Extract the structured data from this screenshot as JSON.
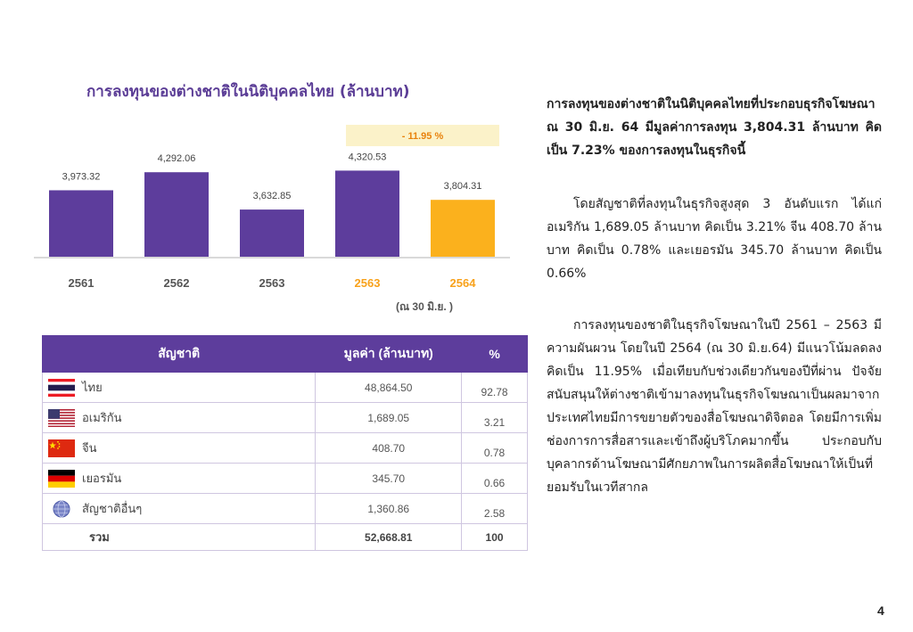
{
  "chart": {
    "title": "การลงทุนของต่างชาติในนิติบุคคลไทย (ล้านบาท)",
    "change_badge": "- 11.95 %",
    "note": "(ณ 30 มิ.ย. )",
    "colors": {
      "bar": "#5d3d9c",
      "highlight_bar": "#fbb11d",
      "highlight_label": "#f8a21c",
      "badge_bg": "#fbf2c9",
      "badge_text": "#e8820c"
    }
  },
  "chart_data": {
    "type": "bar",
    "categories": [
      "2561",
      "2562",
      "2563",
      "2563",
      "2564"
    ],
    "values": [
      3973.32,
      4292.06,
      3632.85,
      4320.53,
      3804.31
    ],
    "value_labels": [
      "3,973.32",
      "4,292.06",
      "3,632.85",
      "4,320.53",
      "3,804.31"
    ],
    "highlight_labels": [
      false,
      false,
      false,
      true,
      true
    ],
    "highlight_bars": [
      false,
      false,
      false,
      false,
      true
    ],
    "title": "การลงทุนของต่างชาติในนิติบุคคลไทย (ล้านบาท)",
    "ylim": [
      2800,
      4500
    ],
    "grid": false
  },
  "table": {
    "headers": [
      "สัญชาติ",
      "มูลค่า (ล้านบาท)",
      "%"
    ],
    "rows": [
      {
        "flag": "thailand-flag-icon",
        "name": "ไทย",
        "value": "48,864.50",
        "pct": "92.78"
      },
      {
        "flag": "usa-flag-icon",
        "name": "อเมริกัน",
        "value": "1,689.05",
        "pct": "3.21"
      },
      {
        "flag": "china-flag-icon",
        "name": "จีน",
        "value": "408.70",
        "pct": "0.78"
      },
      {
        "flag": "germany-flag-icon",
        "name": "เยอรมัน",
        "value": "345.70",
        "pct": "0.66"
      },
      {
        "flag": "globe-icon",
        "name": "สัญชาติอื่นๆ",
        "value": "1,360.86",
        "pct": "2.58"
      }
    ],
    "total": {
      "name": "รวม",
      "value": "52,668.81",
      "pct": "100"
    }
  },
  "text": {
    "lead": "การลงทุนของต่างชาติในนิติบุคคลไทยที่ประกอบธุรกิจโฆษณา ณ 30 มิ.ย. 64 มีมูลค่าการลงทุน 3,804.31 ล้านบาท คิดเป็น 7.23% ของการลงทุนในธุรกิจนี้",
    "para1": "โดยสัญชาติที่ลงทุนในธุรกิจสูงสุด 3 อันดับแรก ได้แก่ อเมริกัน 1,689.05 ล้านบาท คิดเป็น 3.21% จีน 408.70 ล้านบาท คิดเป็น 0.78% และเยอรมัน 345.70 ล้านบาท คิดเป็น 0.66%",
    "para2": "การลงทุนของชาติในธุรกิจโฆษณาในปี 2561 – 2563 มีความผันผวน โดยในปี 2564 (ณ 30 มิ.ย.64) มีแนวโน้มลดลงคิดเป็น 11.95% เมื่อเทียบกับช่วงเดียวกันของปีที่ผ่าน ปัจจัยสนับสนุนให้ต่างชาติเข้ามาลงทุนในธุรกิจโฆษณาเป็นผลมาจากประเทศไทยมีการขยายตัวของสื่อโฆษณาดิจิตอล โดยมีการเพิ่มช่องการการสื่อสารและเข้าถึงผู้บริโภคมากขึ้น ประกอบกับบุคลากรด้านโฆษณามีศักยภาพในการผลิตสื่อโฆษณาให้เป็นที่ยอมรับในเวทีสากล"
  },
  "page_number": "4"
}
